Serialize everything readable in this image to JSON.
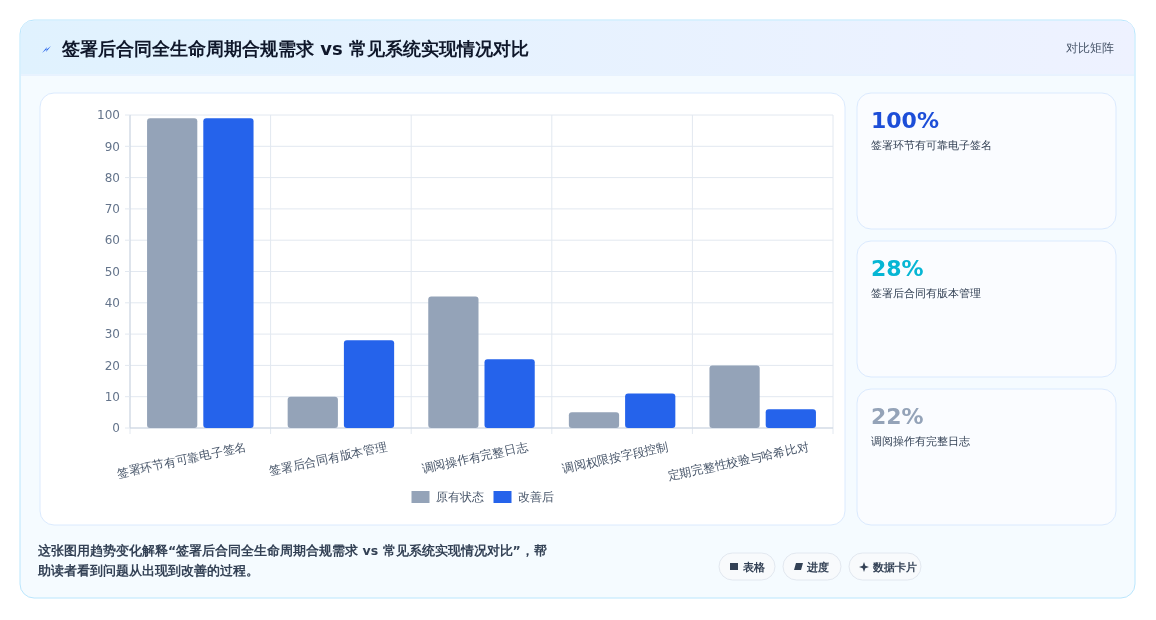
{
  "chart_data": [
    {
      "type": "bar",
      "title": "签署后合同全生命周期合规需求 vs 常见系统实现情况对比",
      "categories": [
        "签署环节有可靠电子签名",
        "签署后合同有版本管理",
        "调阅操作有完整日志",
        "调阅权限按字段控制",
        "定期完整性校验与哈希比对"
      ],
      "series": [
        {
          "name": "原有状态",
          "color": "#94a3b8",
          "values": [
            99,
            10,
            42,
            5,
            20
          ]
        },
        {
          "name": "改善后",
          "color": "#2563eb",
          "values": [
            99,
            28,
            22,
            11,
            6
          ]
        }
      ],
      "ylim": [
        0,
        100
      ],
      "yticks": [
        0,
        10,
        20,
        30,
        40,
        50,
        60,
        70,
        80,
        90,
        100
      ],
      "grid": true,
      "legend": "bottom",
      "annotations": [
        "这张图用趋势变化解释“签署后合同全生命周期合规需求 vs 常见系统实现情况对比”，帮助读者看到问题从出现到改善的过程。",
        "表格",
        "进度",
        "数据卡片"
      ]
    },
    {
      "type": "other",
      "title": "对比矩阵",
      "annotations": [
        "100%",
        "签署环节有可靠电子签名",
        "28%",
        "签署后合同有版本管理",
        "22%",
        "调阅操作有完整日志"
      ],
      "colors": [
        "#1d4ed8",
        "#06b6d4",
        "#94a3b8"
      ]
    }
  ]
}
